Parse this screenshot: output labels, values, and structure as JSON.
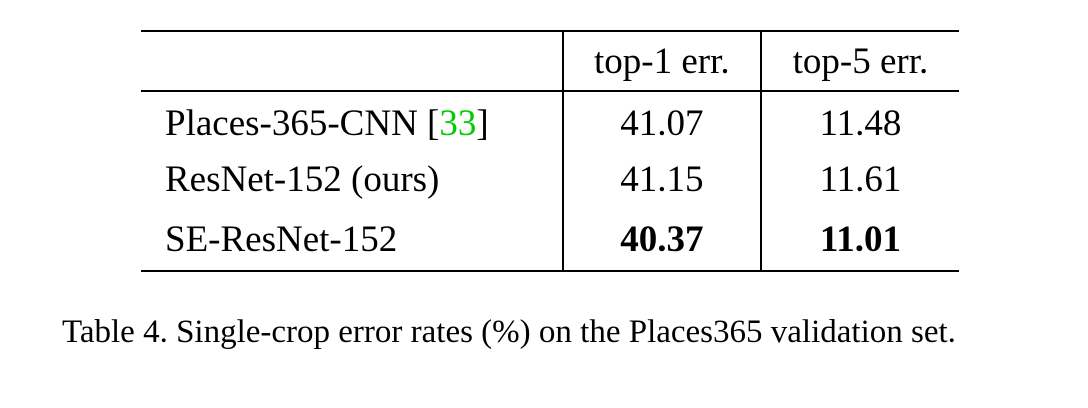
{
  "table": {
    "headers": [
      "",
      "top-1 err.",
      "top-5 err."
    ],
    "rows": [
      {
        "method": "Places-365-CNN [",
        "cite": "33",
        "method_suffix": "]",
        "top1": "41.07",
        "top5": "11.48"
      },
      {
        "method": "ResNet-152 (ours)",
        "cite": "",
        "method_suffix": "",
        "top1": "41.15",
        "top5": "11.61"
      },
      {
        "method": "SE-ResNet-152",
        "cite": "",
        "method_suffix": "",
        "top1": "40.37",
        "top5": "11.01",
        "bold": true
      }
    ]
  },
  "caption": "Table 4. Single-crop error rates (%) on the Places365 validation set.",
  "colors": {
    "citation": "#00cc00",
    "text": "#000000"
  }
}
